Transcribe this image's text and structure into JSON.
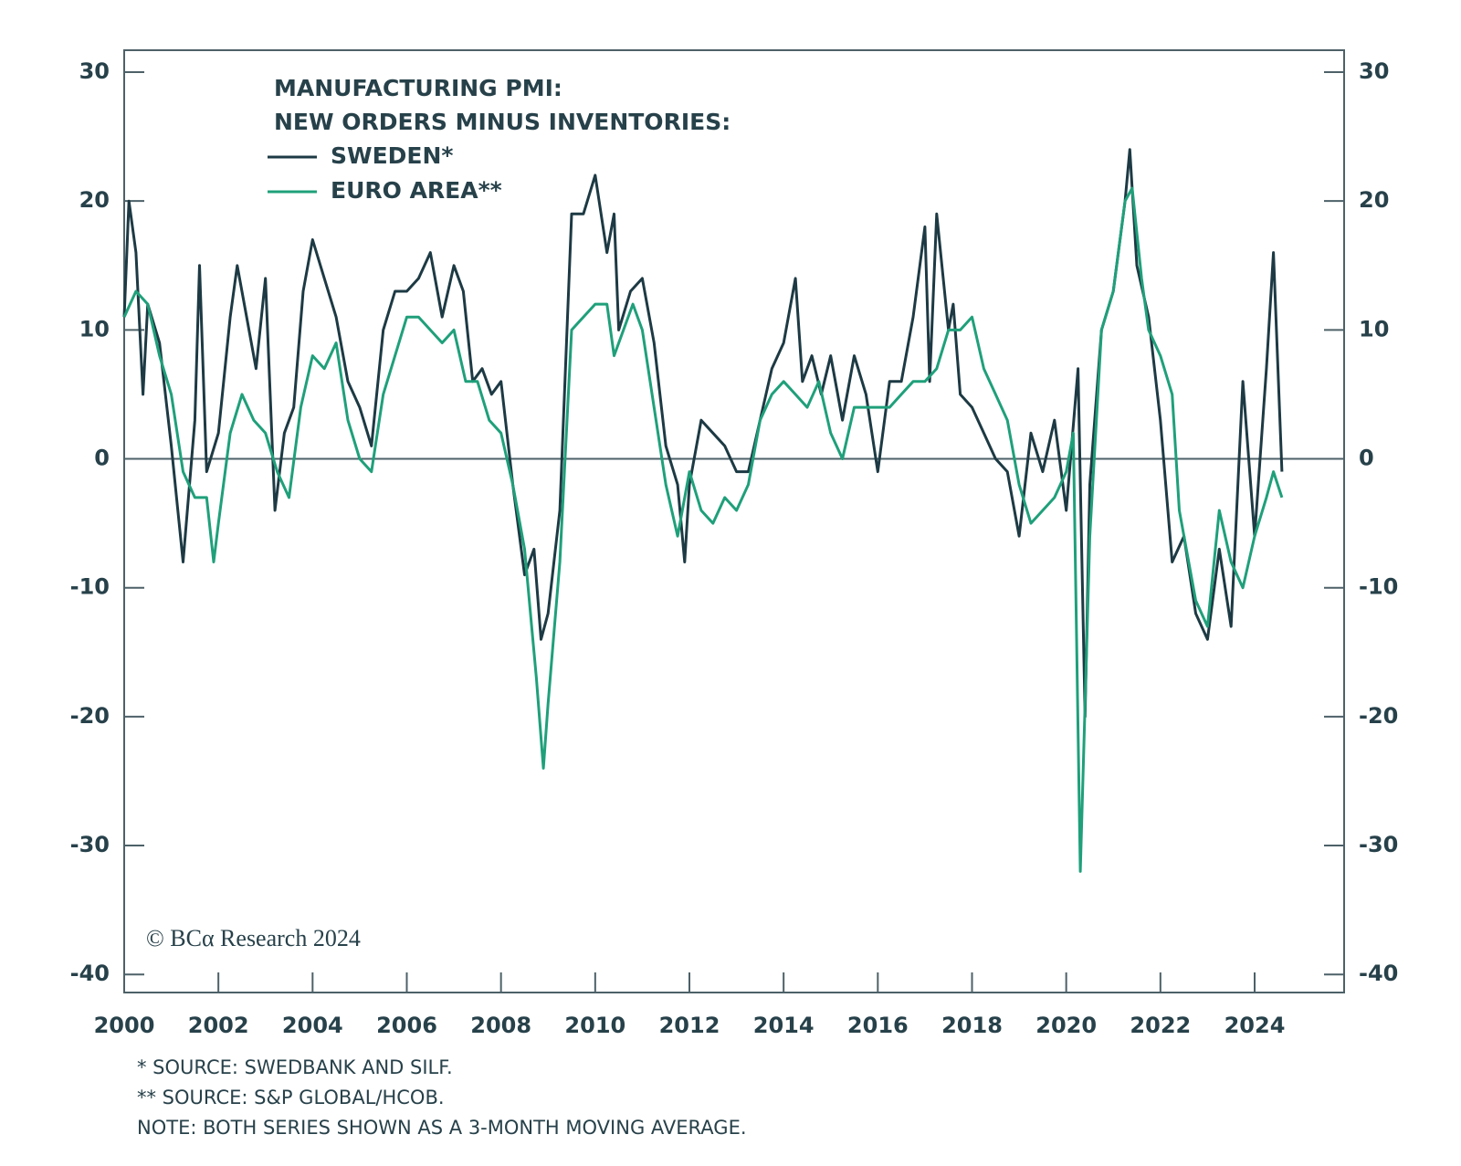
{
  "chart_data": {
    "type": "line",
    "title": [
      "MANUFACTURING PMI:",
      "NEW ORDERS MINUS INVENTORIES:"
    ],
    "annotation": "© BCα Research 2024",
    "notes": [
      "* SOURCE: SWEDBANK AND SILF.",
      "** SOURCE: S&P GLOBAL/HCOB.",
      "NOTE: BOTH SERIES SHOWN AS A 3-MONTH MOVING AVERAGE."
    ],
    "xlim": [
      2000,
      2025.9
    ],
    "xticks": [
      2000,
      2002,
      2004,
      2006,
      2008,
      2010,
      2012,
      2014,
      2016,
      2018,
      2020,
      2022,
      2024
    ],
    "ylim": [
      -41.4,
      31.7
    ],
    "yticks": [
      30,
      20,
      10,
      0,
      -10,
      -20,
      -30,
      -40
    ],
    "y2lim": [
      -41.4,
      31.7
    ],
    "y2ticks": [
      30,
      20,
      10,
      0,
      -10,
      -20,
      -30,
      -40
    ],
    "series": [
      {
        "name": "SWEDEN*",
        "color": "#1d3a44",
        "x": [
          2000.0,
          2000.1,
          2000.25,
          2000.4,
          2000.5,
          2000.75,
          2001.0,
          2001.25,
          2001.5,
          2001.6,
          2001.75,
          2002.0,
          2002.25,
          2002.4,
          2002.6,
          2002.8,
          2003.0,
          2003.2,
          2003.4,
          2003.6,
          2003.8,
          2004.0,
          2004.25,
          2004.5,
          2004.75,
          2005.0,
          2005.25,
          2005.5,
          2005.75,
          2006.0,
          2006.25,
          2006.5,
          2006.75,
          2007.0,
          2007.2,
          2007.4,
          2007.6,
          2007.8,
          2008.0,
          2008.25,
          2008.5,
          2008.7,
          2008.85,
          2009.0,
          2009.25,
          2009.5,
          2009.75,
          2010.0,
          2010.25,
          2010.4,
          2010.5,
          2010.75,
          2011.0,
          2011.25,
          2011.5,
          2011.75,
          2011.9,
          2012.0,
          2012.25,
          2012.5,
          2012.75,
          2013.0,
          2013.25,
          2013.5,
          2013.75,
          2014.0,
          2014.25,
          2014.4,
          2014.6,
          2014.8,
          2015.0,
          2015.25,
          2015.5,
          2015.75,
          2016.0,
          2016.25,
          2016.5,
          2016.75,
          2017.0,
          2017.1,
          2017.25,
          2017.5,
          2017.6,
          2017.75,
          2018.0,
          2018.25,
          2018.5,
          2018.75,
          2019.0,
          2019.25,
          2019.5,
          2019.75,
          2020.0,
          2020.25,
          2020.4,
          2020.5,
          2020.75,
          2021.0,
          2021.25,
          2021.35,
          2021.5,
          2021.75,
          2022.0,
          2022.25,
          2022.5,
          2022.75,
          2023.0,
          2023.25,
          2023.5,
          2023.75,
          2024.0,
          2024.25,
          2024.4,
          2024.58
        ],
        "values": [
          11,
          20,
          16,
          5,
          12,
          9,
          1,
          -8,
          3,
          15,
          -1,
          2,
          11,
          15,
          11,
          7,
          14,
          -4,
          2,
          4,
          13,
          17,
          14,
          11,
          6,
          4,
          1,
          10,
          13,
          13,
          14,
          16,
          11,
          15,
          13,
          6,
          7,
          5,
          6,
          -2,
          -9,
          -7,
          -14,
          -12,
          -4,
          19,
          19,
          22,
          16,
          19,
          10,
          13,
          14,
          9,
          1,
          -2,
          -8,
          -2,
          3,
          2,
          1,
          -1,
          -1,
          3,
          7,
          9,
          14,
          6,
          8,
          5,
          8,
          3,
          8,
          5,
          -1,
          6,
          6,
          11,
          18,
          6,
          19,
          10,
          12,
          5,
          4,
          2,
          0,
          -1,
          -6,
          2,
          -1,
          3,
          -4,
          7,
          -20,
          -2,
          10,
          13,
          20,
          24,
          15,
          11,
          3,
          -8,
          -6,
          -12,
          -14,
          -7,
          -13,
          6,
          -6,
          7,
          16,
          -1
        ]
      },
      {
        "name": "EURO AREA**",
        "color": "#1fa07a",
        "x": [
          2000.0,
          2000.25,
          2000.5,
          2000.75,
          2001.0,
          2001.25,
          2001.5,
          2001.75,
          2001.9,
          2002.0,
          2002.25,
          2002.5,
          2002.75,
          2003.0,
          2003.25,
          2003.5,
          2003.75,
          2004.0,
          2004.25,
          2004.5,
          2004.75,
          2005.0,
          2005.25,
          2005.5,
          2005.75,
          2006.0,
          2006.25,
          2006.5,
          2006.75,
          2007.0,
          2007.25,
          2007.5,
          2007.75,
          2008.0,
          2008.25,
          2008.5,
          2008.75,
          2008.9,
          2009.0,
          2009.25,
          2009.5,
          2009.75,
          2010.0,
          2010.25,
          2010.4,
          2010.6,
          2010.8,
          2011.0,
          2011.25,
          2011.5,
          2011.75,
          2012.0,
          2012.25,
          2012.5,
          2012.75,
          2013.0,
          2013.25,
          2013.5,
          2013.75,
          2014.0,
          2014.25,
          2014.5,
          2014.75,
          2015.0,
          2015.25,
          2015.5,
          2015.75,
          2016.0,
          2016.25,
          2016.5,
          2016.75,
          2017.0,
          2017.25,
          2017.5,
          2017.75,
          2018.0,
          2018.25,
          2018.5,
          2018.75,
          2019.0,
          2019.25,
          2019.5,
          2019.75,
          2020.0,
          2020.15,
          2020.3,
          2020.5,
          2020.75,
          2021.0,
          2021.25,
          2021.4,
          2021.6,
          2021.75,
          2022.0,
          2022.25,
          2022.4,
          2022.6,
          2022.75,
          2023.0,
          2023.25,
          2023.5,
          2023.75,
          2024.0,
          2024.25,
          2024.4,
          2024.58
        ],
        "values": [
          11,
          13,
          12,
          8,
          5,
          -1,
          -3,
          -3,
          -8,
          -5,
          2,
          5,
          3,
          2,
          -1,
          -3,
          4,
          8,
          7,
          9,
          3,
          0,
          -1,
          5,
          8,
          11,
          11,
          10,
          9,
          10,
          6,
          6,
          3,
          2,
          -2,
          -7,
          -17,
          -24,
          -19,
          -8,
          10,
          11,
          12,
          12,
          8,
          10,
          12,
          10,
          4,
          -2,
          -6,
          -1,
          -4,
          -5,
          -3,
          -4,
          -2,
          3,
          5,
          6,
          5,
          4,
          6,
          2,
          0,
          4,
          4,
          4,
          4,
          5,
          6,
          6,
          7,
          10,
          10,
          11,
          7,
          5,
          3,
          -2,
          -5,
          -4,
          -3,
          -1,
          2,
          -32,
          -6,
          10,
          13,
          20,
          21,
          14,
          10,
          8,
          5,
          -4,
          -8,
          -11,
          -13,
          -4,
          -8,
          -10,
          -6,
          -3,
          -1,
          -3
        ]
      }
    ]
  }
}
